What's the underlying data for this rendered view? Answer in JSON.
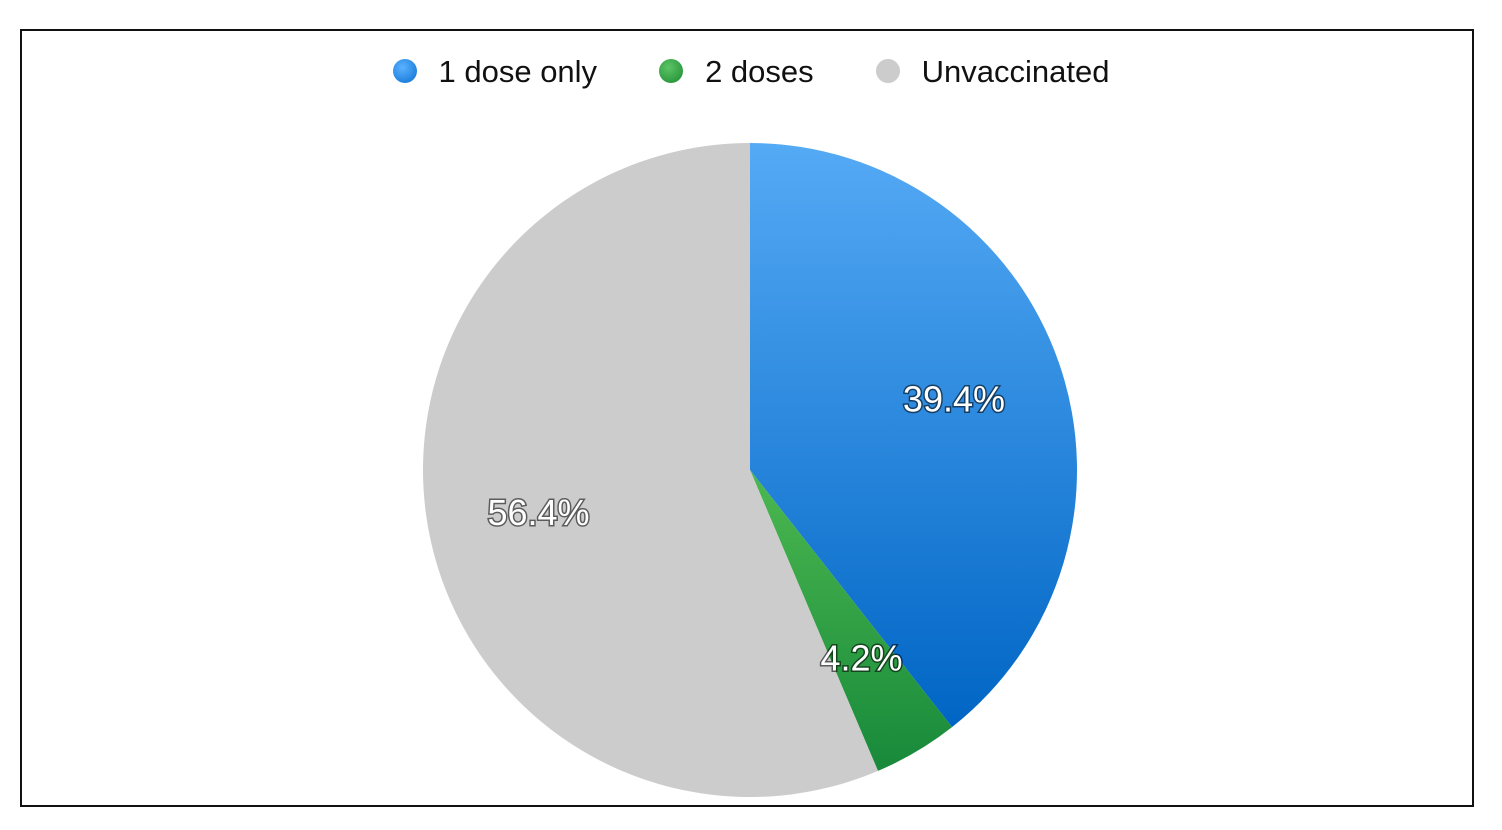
{
  "chart_data": {
    "type": "pie",
    "categories": [
      "1 dose only",
      "2 doses",
      "Unvaccinated"
    ],
    "values": [
      39.4,
      4.2,
      56.4
    ],
    "labels": [
      "39.4%",
      "4.2%",
      "56.4%"
    ],
    "colors": [
      "#2a8ee6",
      "#2ea243",
      "#cccccc"
    ],
    "legend_position": "top"
  }
}
